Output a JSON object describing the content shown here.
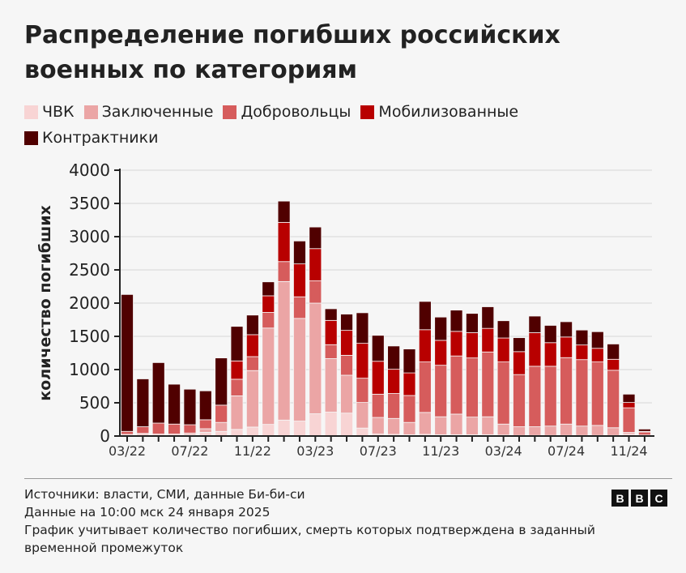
{
  "chart_data": {
    "type": "bar",
    "stacked": true,
    "title": "Распределение погибших российских военных по категориям",
    "ylabel": "количество погибших",
    "xlabel": "",
    "ylim": [
      0,
      4000
    ],
    "yticks": [
      0,
      500,
      1000,
      1500,
      2000,
      2500,
      3000,
      3500,
      4000
    ],
    "grid": true,
    "legend_position": "top",
    "categories": [
      "03/22",
      "04/22",
      "05/22",
      "06/22",
      "07/22",
      "08/22",
      "09/22",
      "10/22",
      "11/22",
      "12/22",
      "01/23",
      "02/23",
      "03/23",
      "04/23",
      "05/23",
      "06/23",
      "07/23",
      "08/23",
      "09/23",
      "10/23",
      "11/23",
      "12/23",
      "01/24",
      "02/24",
      "03/24",
      "04/24",
      "05/24",
      "06/24",
      "07/24",
      "08/24",
      "09/24",
      "10/24",
      "11/24",
      "12/24"
    ],
    "xtick_labels": [
      "03/22",
      "07/22",
      "11/22",
      "03/23",
      "07/23",
      "11/23",
      "03/24",
      "07/24",
      "11/24"
    ],
    "series": [
      {
        "name": "ЧВК",
        "color": "#f8d4d4",
        "values": [
          25,
          40,
          30,
          30,
          20,
          55,
          70,
          100,
          135,
          175,
          240,
          225,
          335,
          360,
          345,
          120,
          30,
          25,
          20,
          25,
          20,
          20,
          20,
          20,
          15,
          10,
          10,
          10,
          10,
          10,
          10,
          10,
          30,
          5
        ]
      },
      {
        "name": "Заключенные",
        "color": "#eba5a5",
        "values": [
          0,
          0,
          0,
          0,
          25,
          55,
          135,
          505,
          850,
          1450,
          2085,
          1545,
          1665,
          805,
          570,
          385,
          250,
          240,
          185,
          330,
          270,
          310,
          265,
          270,
          165,
          130,
          130,
          140,
          170,
          140,
          150,
          115,
          25,
          10
        ]
      },
      {
        "name": "Добровольцы",
        "color": "#d65c5c",
        "values": [
          45,
          100,
          165,
          150,
          125,
          135,
          260,
          250,
          210,
          235,
          300,
          325,
          335,
          210,
          300,
          365,
          350,
          375,
          405,
          760,
          775,
          875,
          890,
          975,
          935,
          785,
          910,
          900,
          1000,
          1000,
          955,
          865,
          370,
          45
        ]
      },
      {
        "name": "Мобилизованные",
        "color": "#b80000",
        "values": [
          0,
          0,
          0,
          0,
          0,
          0,
          0,
          275,
          330,
          250,
          590,
          495,
          485,
          365,
          375,
          525,
          495,
          365,
          340,
          485,
          375,
          370,
          380,
          355,
          360,
          345,
          505,
          355,
          310,
          220,
          205,
          165,
          80,
          10
        ]
      },
      {
        "name": "Контрактники",
        "color": "#500000",
        "values": [
          2060,
          720,
          910,
          600,
          535,
          435,
          710,
          520,
          295,
          210,
          320,
          345,
          325,
          175,
          245,
          460,
          390,
          350,
          360,
          425,
          350,
          320,
          290,
          325,
          260,
          210,
          250,
          260,
          230,
          225,
          250,
          230,
          125,
          35
        ]
      }
    ]
  },
  "footer": {
    "sources": "Источники: власти, СМИ, данные Би-би-си",
    "date": "Данные на 10:00 мск 24 января 2025",
    "note": "График учитывает количество погибших, смерть которых подтверждена в заданный временной промежуток"
  },
  "logo": {
    "letters": [
      "B",
      "B",
      "C"
    ]
  }
}
